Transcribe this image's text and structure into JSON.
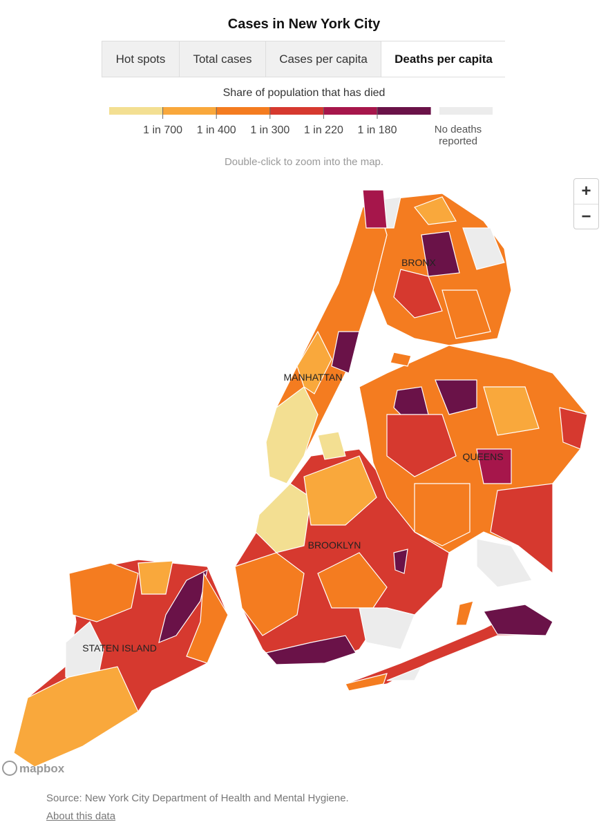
{
  "title": "Cases in New York City",
  "tabs": [
    {
      "label": "Hot spots",
      "selected": false
    },
    {
      "label": "Total cases",
      "selected": false
    },
    {
      "label": "Cases per capita",
      "selected": false
    },
    {
      "label": "Deaths per capita",
      "selected": true
    }
  ],
  "legend": {
    "title": "Share of population that has died",
    "colors": [
      "#f3df92",
      "#f9a83c",
      "#f47c20",
      "#d6392f",
      "#a6164b",
      "#6a1248"
    ],
    "labels": [
      "1 in 700",
      "1 in 400",
      "1 in 300",
      "1 in 220",
      "1 in 180"
    ],
    "no_data": {
      "color": "#ececec",
      "label": "No deaths reported"
    }
  },
  "hint": "Double-click to zoom into the map.",
  "map": {
    "labels": [
      "BRONX",
      "MANHATTAN",
      "QUEENS",
      "BROOKLYN",
      "STATEN ISLAND"
    ],
    "zoom_in": "+",
    "zoom_out": "−",
    "attribution": "mapbox"
  },
  "source": "Source: New York City Department of Health and Mental Hygiene.",
  "link": "About this data"
}
